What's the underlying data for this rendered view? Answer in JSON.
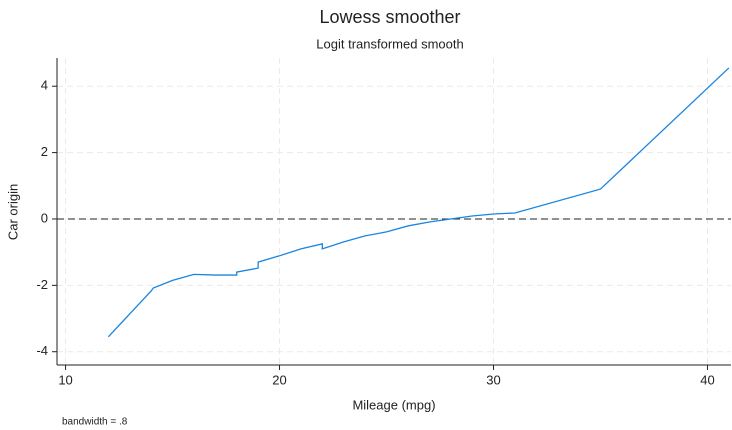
{
  "chart_data": {
    "type": "line",
    "title": "Lowess smoother",
    "subtitle": "Logit transformed smooth",
    "x_label": "Mileage (mpg)",
    "y_label": "Car origin",
    "note": "bandwidth = .8",
    "x": [
      12,
      14,
      14.1,
      15,
      16,
      17,
      18,
      18,
      19,
      19,
      20,
      21,
      22,
      22,
      23,
      24,
      25,
      26,
      27,
      28,
      29,
      30,
      31,
      35,
      41
    ],
    "series": [
      {
        "color": "#1a85e0",
        "values": [
          -3.55,
          -2.17,
          -2.08,
          -1.85,
          -1.67,
          -1.69,
          -1.69,
          -1.6,
          -1.48,
          -1.3,
          -1.11,
          -0.9,
          -0.75,
          -0.9,
          -0.69,
          -0.51,
          -0.39,
          -0.21,
          -0.09,
          0.0,
          0.09,
          0.15,
          0.18,
          0.9,
          4.55
        ]
      }
    ],
    "xlim": [
      9.6,
      41.1
    ],
    "ylim": [
      -4.4,
      4.85
    ],
    "xticks": [
      10,
      20,
      30,
      40
    ],
    "yticks": [
      -4,
      -2,
      0,
      2,
      4
    ],
    "grid": true,
    "yline": 0
  }
}
